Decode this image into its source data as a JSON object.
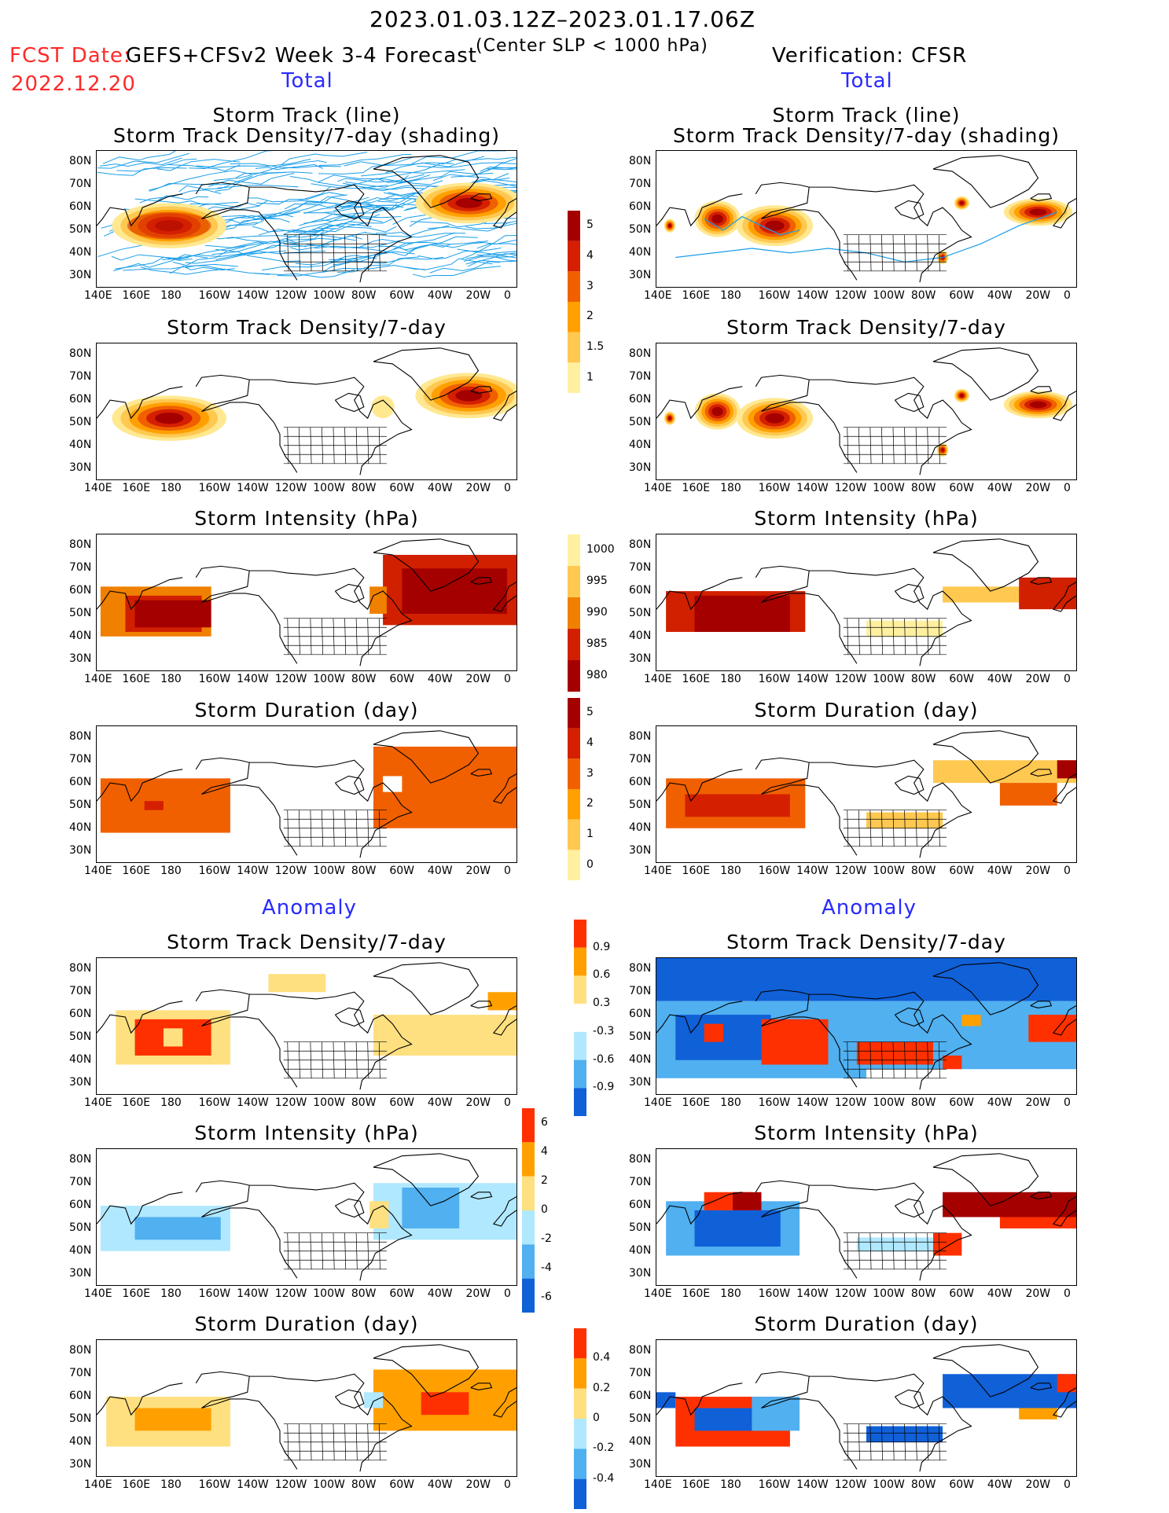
{
  "header": {
    "period": "2023.01.03.12Z–2023.01.17.06Z",
    "fcst_label": "FCST Date:",
    "fcst_date": "2022.12.20",
    "model": "GEFS+CFSv2 Week 3-4 Forecast",
    "criterion": "(Center SLP < 1000 hPa)",
    "verification": "Verification: CFSR"
  },
  "section_labels": {
    "total": "Total",
    "anomaly": "Anomaly"
  },
  "panel_titles": {
    "track_line": "Storm Track (line)",
    "track_shading": "Storm Track Density/7-day (shading)",
    "density": "Storm Track Density/7-day",
    "intensity": "Storm Intensity (hPa)",
    "duration": "Storm Duration (day)"
  },
  "axes": {
    "lat_labels": [
      "80N",
      "70N",
      "60N",
      "50N",
      "40N",
      "30N"
    ],
    "lon_labels": [
      "140E",
      "160E",
      "180",
      "160W",
      "140W",
      "120W",
      "100W",
      "80W",
      "60W",
      "40W",
      "20W",
      "0"
    ]
  },
  "colorbars": {
    "density": {
      "labels": [
        "5",
        "4",
        "3",
        "2",
        "1.5",
        "1"
      ],
      "colors": [
        "#a50000",
        "#d42000",
        "#f06000",
        "#ffa000",
        "#ffc850",
        "#fff0a0"
      ]
    },
    "intensity": {
      "labels": [
        "1000",
        "995",
        "990",
        "985",
        "980"
      ],
      "colors": [
        "#fff0a0",
        "#ffc850",
        "#f08000",
        "#d02000",
        "#a50000"
      ]
    },
    "duration": {
      "labels": [
        "5",
        "4",
        "3",
        "2",
        "1",
        "0"
      ],
      "colors": [
        "#a50000",
        "#d42000",
        "#f06000",
        "#ffa000",
        "#ffc850",
        "#fff0a0"
      ]
    },
    "anom_density": {
      "labels": [
        "0.9",
        "0.6",
        "0.3",
        "-0.3",
        "-0.6",
        "-0.9"
      ],
      "colors": [
        "#ff3000",
        "#ffa000",
        "#ffe080",
        "#ffffff",
        "#b0e8ff",
        "#50b0f0",
        "#1060d8"
      ]
    },
    "anom_intensity": {
      "labels": [
        "6",
        "4",
        "2",
        "0",
        "-2",
        "-4",
        "-6"
      ],
      "colors": [
        "#ff3000",
        "#ffa000",
        "#ffe080",
        "#b0e8ff",
        "#50b0f0",
        "#1060d8"
      ]
    },
    "anom_duration": {
      "labels": [
        "0.4",
        "0.2",
        "0",
        "-0.2",
        "-0.4"
      ],
      "colors": [
        "#ff3000",
        "#ffa000",
        "#ffe080",
        "#b0e8ff",
        "#50b0f0",
        "#1060d8"
      ]
    }
  }
}
